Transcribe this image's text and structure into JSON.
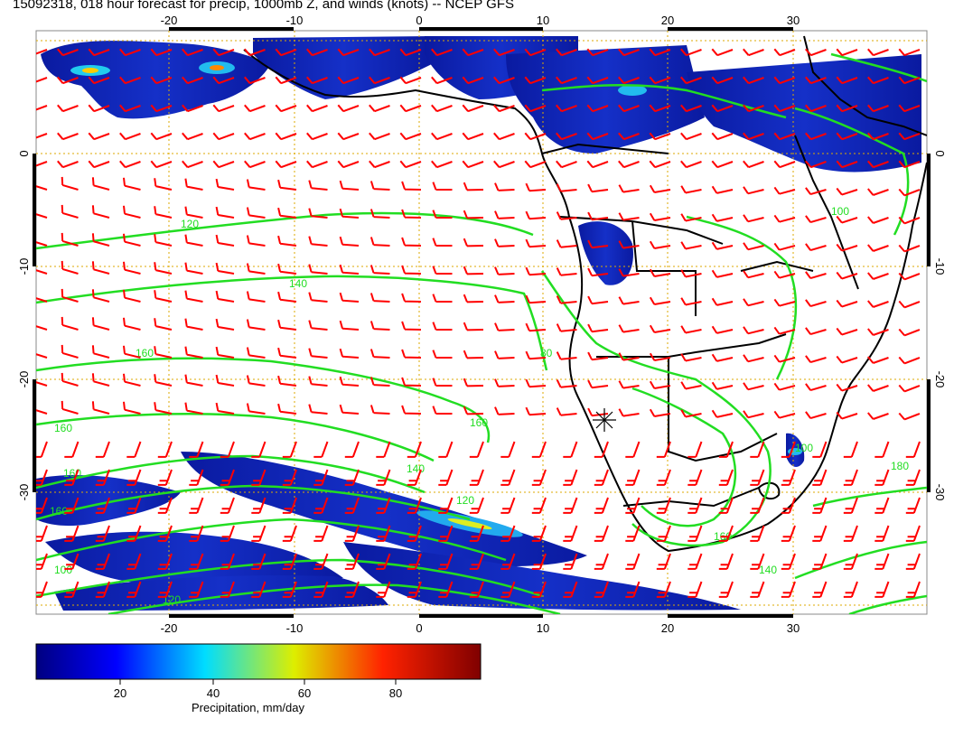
{
  "title": "15092318, 018 hour forecast for precip, 1000mb Z, and winds (knots) -- NCEP GFS",
  "axes": {
    "lon_ticks": [
      "-20",
      "-10",
      "0",
      "10",
      "20",
      "30"
    ],
    "lat_ticks": [
      "0",
      "-10",
      "-20",
      "-30"
    ]
  },
  "contour_labels": [
    "120",
    "140",
    "160",
    "160",
    "160",
    "160",
    "160",
    "140",
    "120",
    "100",
    "80",
    "100",
    "120",
    "140",
    "160",
    "100",
    "180"
  ],
  "colorbar": {
    "ticks": [
      "20",
      "40",
      "60",
      "80"
    ],
    "label": "Precipitation, mm/day",
    "range": [
      0,
      100
    ],
    "colors": [
      "#000080",
      "#0000ff",
      "#00ffff",
      "#ffff00",
      "#ff0000",
      "#800000"
    ]
  },
  "colors": {
    "contour": "#22dd22",
    "barb": "#ff0000",
    "grid": "#ddaa00",
    "coast": "#000000"
  }
}
